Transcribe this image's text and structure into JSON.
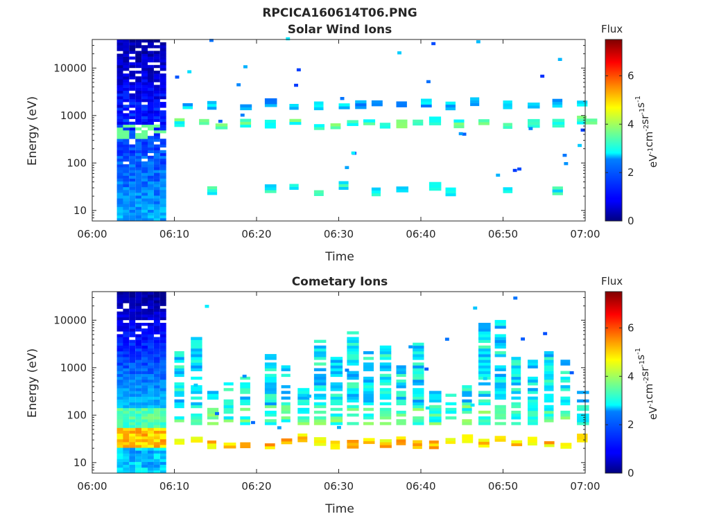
{
  "figure": {
    "title": "RPCICA160614T06.PNG"
  },
  "colorbar": {
    "label": "Flux",
    "units_html": [
      "eV",
      "-1",
      "cm",
      "-2",
      "sr",
      "-1",
      "s",
      "-1"
    ],
    "ticks": [
      "0",
      "2",
      "4",
      "6"
    ],
    "range": [
      0,
      7.5
    ],
    "colormap": "jet"
  },
  "chart_data": [
    {
      "type": "heatmap",
      "title": "Solar Wind Ions",
      "xlabel": "Time",
      "ylabel": "Energy (eV)",
      "x_ticks": [
        "06:00",
        "06:10",
        "06:20",
        "06:30",
        "06:40",
        "06:50",
        "07:00"
      ],
      "x_range": [
        "06:00",
        "07:00"
      ],
      "y_scale": "log",
      "y_ticks": [
        "10",
        "100",
        "1000",
        "10000"
      ],
      "y_range": [
        6,
        40000
      ],
      "grid": false,
      "features": [
        {
          "time_range": [
            "06:03",
            "06:09"
          ],
          "energy_range": [
            6,
            40000
          ],
          "flux": "0.5-2",
          "note": "dense block"
        },
        {
          "band": "main",
          "energy_range": [
            500,
            900
          ],
          "flux": "3-4.5",
          "times": [
            "06:10",
            "06:13",
            "06:15",
            "06:18",
            "06:21",
            "06:24",
            "06:27",
            "06:29",
            "06:31",
            "06:33",
            "06:35",
            "06:37",
            "06:39",
            "06:41",
            "06:44",
            "06:47",
            "06:50",
            "06:53",
            "06:56",
            "06:59",
            "07:00"
          ]
        },
        {
          "band": "upper",
          "energy_range": [
            1300,
            2000
          ],
          "flux": "2-3",
          "times": [
            "06:11",
            "06:14",
            "06:18",
            "06:21",
            "06:24",
            "06:27",
            "06:30",
            "06:32",
            "06:34",
            "06:37",
            "06:40",
            "06:43",
            "06:46",
            "06:50",
            "06:53",
            "06:56",
            "06:59"
          ]
        },
        {
          "band": "low",
          "energy_range": [
            20,
            45
          ],
          "flux": "3",
          "times": [
            "06:14",
            "06:21",
            "06:24",
            "06:27",
            "06:30",
            "06:34",
            "06:37",
            "06:41",
            "06:43",
            "06:50",
            "06:56"
          ]
        }
      ]
    },
    {
      "type": "heatmap",
      "title": "Cometary Ions",
      "xlabel": "Time",
      "ylabel": "Energy (eV)",
      "x_ticks": [
        "06:00",
        "06:10",
        "06:20",
        "06:30",
        "06:40",
        "06:50",
        "07:00"
      ],
      "x_range": [
        "06:00",
        "07:00"
      ],
      "y_scale": "log",
      "y_ticks": [
        "10",
        "100",
        "1000",
        "10000"
      ],
      "y_range": [
        6,
        40000
      ],
      "grid": false,
      "features": [
        {
          "time_range": [
            "06:03",
            "06:09"
          ],
          "energy_range": [
            6,
            40000
          ],
          "flux": "0.3-5",
          "note": "dense block"
        },
        {
          "band": "plume",
          "energy_range": [
            60,
            10000
          ],
          "flux": "2-3.5",
          "times": [
            "06:10",
            "06:12",
            "06:14",
            "06:16",
            "06:18",
            "06:21",
            "06:23",
            "06:25",
            "06:27",
            "06:29",
            "06:31",
            "06:33",
            "06:35",
            "06:37",
            "06:39",
            "06:41",
            "06:43",
            "06:45",
            "06:47",
            "06:49",
            "06:51",
            "06:53",
            "06:55",
            "06:57",
            "06:59"
          ]
        },
        {
          "band": "low",
          "energy_range": [
            18,
            45
          ],
          "flux": "4.5-5.5",
          "times": [
            "06:10",
            "06:12",
            "06:14",
            "06:16",
            "06:18",
            "06:21",
            "06:23",
            "06:25",
            "06:27",
            "06:29",
            "06:31",
            "06:33",
            "06:35",
            "06:37",
            "06:39",
            "06:41",
            "06:43",
            "06:45",
            "06:47",
            "06:49",
            "06:51",
            "06:53",
            "06:55",
            "06:57",
            "06:59"
          ]
        }
      ]
    }
  ]
}
